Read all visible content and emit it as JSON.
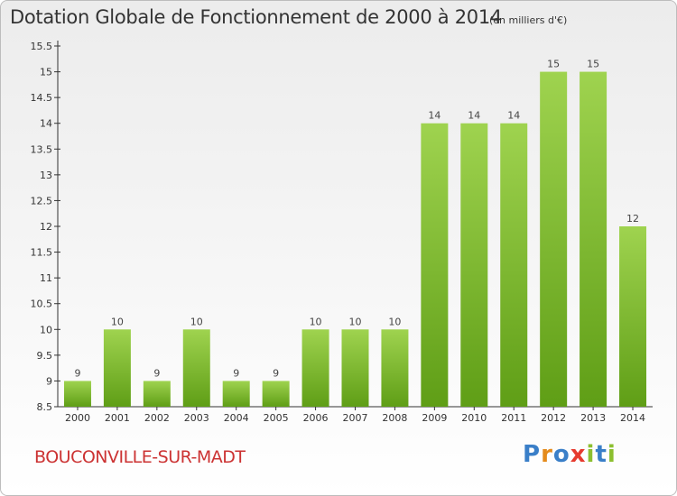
{
  "title": "Dotation Globale de Fonctionnement de 2000 à 2014",
  "unit_note": "(en milliers d'€)",
  "commune": "BOUCONVILLE-SUR-MADT",
  "logo": {
    "text": "Proxiti",
    "letters": [
      {
        "ch": "P",
        "color": "#3a7fc8"
      },
      {
        "ch": "r",
        "color": "#e48b1c"
      },
      {
        "ch": "o",
        "color": "#3a7fc8"
      },
      {
        "ch": "x",
        "color": "#e63a2e"
      },
      {
        "ch": "i",
        "color": "#8cbf2f"
      },
      {
        "ch": "t",
        "color": "#3a7fc8"
      },
      {
        "ch": "i",
        "color": "#8cbf2f"
      }
    ]
  },
  "colors": {
    "bar_light": "#9fd34f",
    "bar_dark": "#5f9e16",
    "commune_text": "#cc3333",
    "axis": "#333333"
  },
  "chart_data": {
    "type": "bar",
    "title": "Dotation Globale de Fonctionnement de 2000 à 2014",
    "subtitle": "(en milliers d'€)",
    "xlabel": "",
    "ylabel": "",
    "categories": [
      "2000",
      "2001",
      "2002",
      "2003",
      "2004",
      "2005",
      "2006",
      "2007",
      "2008",
      "2009",
      "2010",
      "2011",
      "2012",
      "2013",
      "2014"
    ],
    "values": [
      9,
      10,
      9,
      10,
      9,
      9,
      10,
      10,
      10,
      14,
      14,
      14,
      15,
      15,
      12
    ],
    "ylim": [
      8.5,
      15.5
    ],
    "yticks": [
      "8.5",
      "9",
      "9.5",
      "10",
      "10.5",
      "11",
      "11.5",
      "12",
      "12.5",
      "13",
      "13.5",
      "14",
      "14.5",
      "15",
      "15.5"
    ],
    "grid": false,
    "legend": "none"
  }
}
